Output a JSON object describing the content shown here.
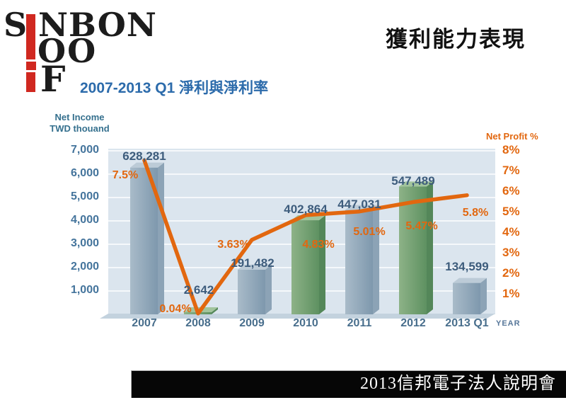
{
  "slide": {
    "title": "獲利能力表現",
    "subtitle": "2007-2013 Q1 淨利與淨利率",
    "footer": "2013信邦電子法人說明會"
  },
  "logo": {
    "row1_left": "S",
    "row1_right": "NBON",
    "row2": "OO",
    "row3": "F",
    "red_color": "#d02820",
    "text_color": "#1c1c1c"
  },
  "chart_data": {
    "type": "bar",
    "subtype": "3d-bar-with-line-overlay",
    "title": "2007-2013 Q1 淨利與淨利率",
    "categories": [
      "2007",
      "2008",
      "2009",
      "2010",
      "2011",
      "2012",
      "2013 Q1"
    ],
    "series": [
      {
        "name": "Net Income",
        "type": "bar",
        "values": [
          628281,
          2642,
          191482,
          402864,
          447031,
          547489,
          134599
        ],
        "labels": [
          "628,281",
          "2,642",
          "191,482",
          "402,864",
          "447,031",
          "547,489",
          "134,599"
        ],
        "bar_colors": [
          "blue",
          "green",
          "blue",
          "green",
          "blue",
          "green",
          "blue"
        ]
      },
      {
        "name": "Net Profit %",
        "type": "line",
        "values": [
          7.5,
          0.04,
          3.63,
          4.83,
          5.01,
          5.47,
          5.8
        ],
        "labels": [
          "7.5%",
          "0.04%",
          "3.63%",
          "4.83%",
          "5.01%",
          "5.47%",
          "5.8%"
        ]
      }
    ],
    "left_axis": {
      "title_line1": "Net Income",
      "title_line2": "TWD thouand",
      "ticks": [
        "7,000",
        "6,000",
        "5,000",
        "4,000",
        "3,000",
        "2,000",
        "1,000"
      ],
      "range": [
        0,
        7000
      ],
      "value_to_axis_divisor": 100
    },
    "right_axis": {
      "title": "Net Profit %",
      "ticks": [
        "8%",
        "7%",
        "6%",
        "5%",
        "4%",
        "3%",
        "2%",
        "1%"
      ],
      "range": [
        0,
        8
      ]
    },
    "x_axis": {
      "title": "YEAR"
    },
    "grid": "horizontal white gridlines on light-blue wall, 3D floor strip",
    "legend": "none",
    "colors": {
      "plot_bg": "#dbe5ee",
      "floor": "#c3d2de",
      "gridline": "#f5f8fb",
      "line": "#e2670f",
      "pct_label": "#e2670f",
      "value_label": "#3d5c7c",
      "bar_blue_front_light": "#a9bbc9",
      "bar_blue_front_dark": "#7e98ad",
      "bar_blue_side": "#8ca3b6",
      "bar_blue_top": "#bccbd7",
      "bar_green_front_light": "#8db287",
      "bar_green_front_dark": "#5e9161",
      "bar_green_side": "#548759",
      "bar_green_top": "#a2c49c"
    },
    "label_hints": {
      "value_labels": [
        [
          204,
          211
        ],
        [
          281,
          400
        ],
        [
          357,
          362
        ],
        [
          432,
          286
        ],
        [
          508,
          279
        ],
        [
          584,
          246
        ],
        [
          660,
          367
        ]
      ],
      "pct_labels": [
        [
          177,
          239
        ],
        [
          248,
          428
        ],
        [
          330,
          337
        ],
        [
          450,
          337
        ],
        [
          522,
          319
        ],
        [
          596,
          311
        ],
        [
          672,
          292
        ]
      ]
    }
  }
}
